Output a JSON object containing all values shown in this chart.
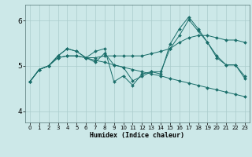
{
  "xlabel": "Humidex (Indice chaleur)",
  "bg_color": "#cce8e8",
  "grid_color": "#aacccc",
  "line_color": "#1a6e6a",
  "xlim": [
    -0.5,
    23.5
  ],
  "ylim": [
    3.75,
    6.35
  ],
  "yticks": [
    4,
    5,
    6
  ],
  "xticks": [
    0,
    1,
    2,
    3,
    4,
    5,
    6,
    7,
    8,
    9,
    10,
    11,
    12,
    13,
    14,
    15,
    16,
    17,
    18,
    19,
    20,
    21,
    22,
    23
  ],
  "series": [
    [
      4.65,
      4.92,
      5.0,
      5.22,
      5.38,
      5.32,
      5.18,
      5.32,
      5.38,
      4.65,
      4.78,
      4.57,
      4.82,
      4.87,
      4.82,
      5.48,
      5.82,
      6.08,
      5.82,
      5.52,
      5.18,
      5.02,
      5.02,
      4.72
    ],
    [
      4.65,
      4.92,
      5.0,
      5.18,
      5.22,
      5.22,
      5.18,
      5.18,
      5.22,
      5.22,
      5.22,
      5.22,
      5.22,
      5.27,
      5.32,
      5.38,
      5.52,
      5.62,
      5.67,
      5.67,
      5.62,
      5.57,
      5.57,
      5.52
    ],
    [
      4.65,
      4.92,
      5.0,
      5.18,
      5.22,
      5.22,
      5.18,
      5.12,
      5.08,
      5.02,
      4.97,
      4.92,
      4.87,
      4.82,
      4.78,
      4.72,
      4.67,
      4.62,
      4.57,
      4.52,
      4.47,
      4.42,
      4.37,
      4.32
    ],
    [
      4.65,
      4.92,
      5.0,
      5.22,
      5.38,
      5.32,
      5.18,
      5.08,
      5.28,
      5.02,
      4.97,
      4.67,
      4.77,
      4.87,
      4.87,
      5.38,
      5.67,
      6.02,
      5.77,
      5.52,
      5.22,
      5.02,
      5.02,
      4.77
    ]
  ]
}
